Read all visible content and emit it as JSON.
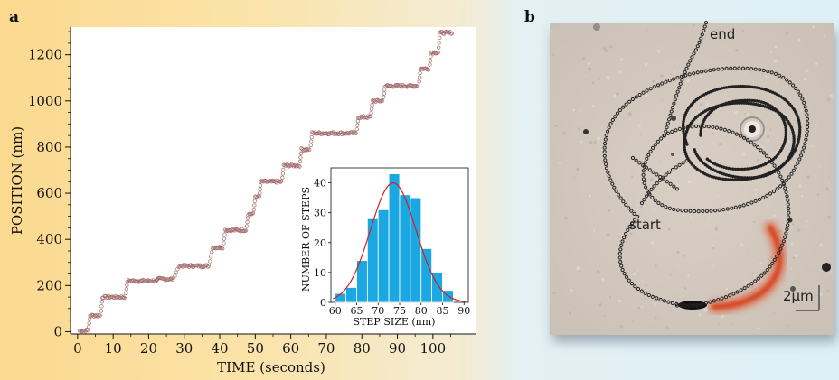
{
  "panels": {
    "a": {
      "label": "a"
    },
    "b": {
      "label": "b"
    }
  },
  "chart_data": [
    {
      "type": "scatter",
      "title": "",
      "xlabel": "TIME (seconds)",
      "ylabel": "POSITION (nm)",
      "xlim": [
        -2,
        112
      ],
      "ylim": [
        -10,
        1320
      ],
      "x_ticks": [
        0,
        10,
        20,
        30,
        40,
        50,
        60,
        70,
        80,
        90,
        100
      ],
      "y_ticks": [
        0,
        200,
        400,
        600,
        800,
        1000,
        1200
      ],
      "grid": false,
      "marker_color": "#a36a6a",
      "step_trace": [
        {
          "t_start": 0.5,
          "t_end": 3,
          "position": 5
        },
        {
          "t_start": 3.5,
          "t_end": 6.5,
          "position": 70
        },
        {
          "t_start": 7,
          "t_end": 13.5,
          "position": 150
        },
        {
          "t_start": 14,
          "t_end": 22,
          "position": 220
        },
        {
          "t_start": 22.5,
          "t_end": 27,
          "position": 228
        },
        {
          "t_start": 28.5,
          "t_end": 37,
          "position": 285
        },
        {
          "t_start": 38,
          "t_end": 41,
          "position": 365
        },
        {
          "t_start": 41.5,
          "t_end": 47.5,
          "position": 440
        },
        {
          "t_start": 48,
          "t_end": 49.5,
          "position": 510
        },
        {
          "t_start": 50,
          "t_end": 51.2,
          "position": 585
        },
        {
          "t_start": 51.5,
          "t_end": 57.5,
          "position": 650
        },
        {
          "t_start": 58,
          "t_end": 62.5,
          "position": 720
        },
        {
          "t_start": 63,
          "t_end": 65.5,
          "position": 790
        },
        {
          "t_start": 66,
          "t_end": 78.5,
          "position": 860
        },
        {
          "t_start": 79,
          "t_end": 82.5,
          "position": 930
        },
        {
          "t_start": 83,
          "t_end": 86,
          "position": 1000
        },
        {
          "t_start": 86.5,
          "t_end": 96,
          "position": 1065
        },
        {
          "t_start": 96.5,
          "t_end": 99,
          "position": 1140
        },
        {
          "t_start": 99.5,
          "t_end": 101.5,
          "position": 1210
        },
        {
          "t_start": 102,
          "t_end": 105.5,
          "position": 1295
        }
      ]
    },
    {
      "type": "bar",
      "title": "",
      "xlabel": "STEP SIZE (nm)",
      "ylabel": "NUMBER OF STEPS",
      "xlim": [
        59,
        91
      ],
      "ylim": [
        0,
        45
      ],
      "x_ticks": [
        60,
        65,
        70,
        75,
        80,
        85,
        90
      ],
      "y_ticks": [
        0,
        10,
        20,
        30,
        40
      ],
      "bar_color": "#1aa7e2",
      "bin_width": 2.5,
      "bin_centers": [
        61.25,
        63.75,
        66.25,
        68.75,
        71.25,
        73.75,
        76.25,
        78.75,
        81.25,
        83.75,
        86.25
      ],
      "values": [
        3,
        5,
        14,
        28,
        31,
        43,
        36,
        35,
        18,
        10,
        4
      ],
      "fit_curve": {
        "type": "gaussian",
        "mean": 73.5,
        "sigma": 5.3,
        "peak": 40,
        "color": "#d42020"
      }
    }
  ],
  "photo": {
    "labels": {
      "end": "end",
      "start": "start"
    },
    "scale_bar": "2µm",
    "trace_color": "#222222",
    "glow_color": "#e0502a"
  }
}
